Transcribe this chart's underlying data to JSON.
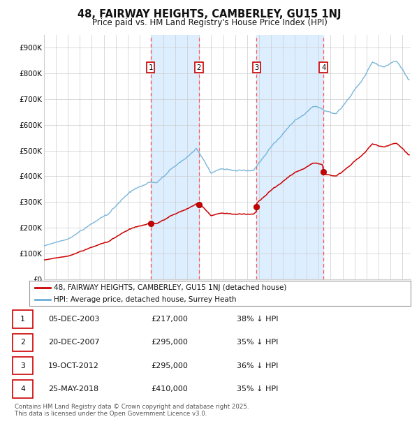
{
  "title": "48, FAIRWAY HEIGHTS, CAMBERLEY, GU15 1NJ",
  "subtitle": "Price paid vs. HM Land Registry's House Price Index (HPI)",
  "ylabel_ticks": [
    "£0",
    "£100K",
    "£200K",
    "£300K",
    "£400K",
    "£500K",
    "£600K",
    "£700K",
    "£800K",
    "£900K"
  ],
  "ytick_values": [
    0,
    100000,
    200000,
    300000,
    400000,
    500000,
    600000,
    700000,
    800000,
    900000
  ],
  "ylim": [
    0,
    950000
  ],
  "xlim_start": 1995.0,
  "xlim_end": 2025.7,
  "legend_line1": "48, FAIRWAY HEIGHTS, CAMBERLEY, GU15 1NJ (detached house)",
  "legend_line2": "HPI: Average price, detached house, Surrey Heath",
  "sales": [
    {
      "label": "1",
      "date": 2003.92,
      "price": 217000,
      "date_str": "05-DEC-2003"
    },
    {
      "label": "2",
      "date": 2007.97,
      "price": 295000,
      "date_str": "20-DEC-2007"
    },
    {
      "label": "3",
      "date": 2012.8,
      "price": 295000,
      "date_str": "19-OCT-2012"
    },
    {
      "label": "4",
      "date": 2018.4,
      "price": 410000,
      "date_str": "25-MAY-2018"
    }
  ],
  "table_rows": [
    [
      "1",
      "05-DEC-2003",
      "£217,000",
      "38% ↓ HPI"
    ],
    [
      "2",
      "20-DEC-2007",
      "£295,000",
      "35% ↓ HPI"
    ],
    [
      "3",
      "19-OCT-2012",
      "£295,000",
      "36% ↓ HPI"
    ],
    [
      "4",
      "25-MAY-2018",
      "£410,000",
      "35% ↓ HPI"
    ]
  ],
  "footer": "Contains HM Land Registry data © Crown copyright and database right 2025.\nThis data is licensed under the Open Government Licence v3.0.",
  "hpi_color": "#6baed6",
  "price_color": "#cc0000",
  "vline_color": "#ff5555",
  "box_color": "#cc0000",
  "shading_color": "#ddeeff",
  "grid_color": "#cccccc",
  "background_color": "#ffffff"
}
